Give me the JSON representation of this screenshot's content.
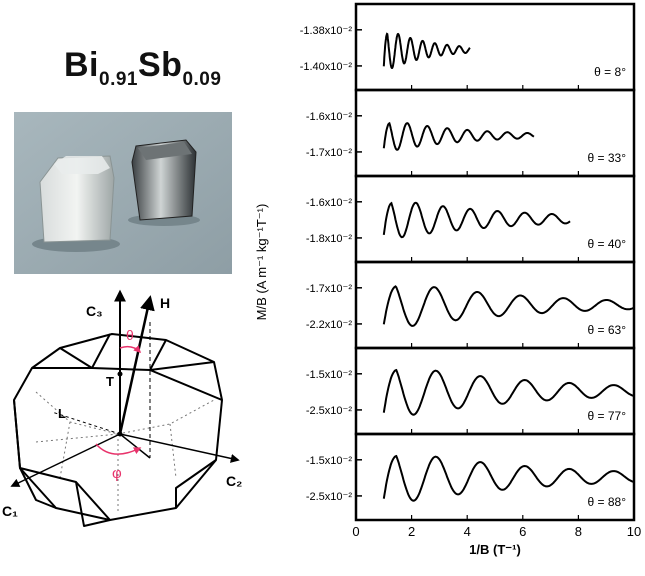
{
  "title": {
    "base1": "Bi",
    "sub1": "0.91",
    "base2": "Sb",
    "sub2": "0.09"
  },
  "brillouin_zone": {
    "labels": [
      "C₃",
      "H",
      "θ",
      "T",
      "L",
      "C₁",
      "φ",
      "C₂"
    ],
    "highlight_color": "#e8336b"
  },
  "chart_data": {
    "type": "line",
    "xlabel": "1/B (T⁻¹)",
    "ylabel": "M/B (A m⁻¹ kg⁻¹T⁻¹)",
    "xlim": [
      0,
      10
    ],
    "xticks": [
      0,
      2,
      4,
      6,
      8,
      10
    ],
    "xtick_labels": [
      "0",
      "2",
      "4",
      "6",
      "8",
      "10"
    ],
    "panels": [
      {
        "angle_label": "θ = 8°",
        "yticks": [
          "-1.38x10⁻²",
          "-1.40x10⁻²"
        ],
        "ylim": [
          -1.41,
          -1.37
        ],
        "series": {
          "x_start": 1.0,
          "x_end": 4.1,
          "center": -1.3915,
          "amplitude": 0.012,
          "period": 0.44,
          "decay": 0.55
        }
      },
      {
        "angle_label": "θ = 33°",
        "yticks": [
          "-1.6x10⁻²",
          "-1.7x10⁻²"
        ],
        "ylim": [
          -1.72,
          -1.58
        ],
        "series": {
          "x_start": 1.0,
          "x_end": 6.4,
          "center": -1.655,
          "amplitude": 0.032,
          "period": 0.72,
          "decay": 0.3
        }
      },
      {
        "angle_label": "θ = 40°",
        "yticks": [
          "-1.6x10⁻²",
          "-1.8x10⁻²"
        ],
        "ylim": [
          -1.83,
          -1.57
        ],
        "series": {
          "x_start": 1.0,
          "x_end": 7.7,
          "center": -1.7,
          "amplitude": 0.075,
          "period": 0.98,
          "decay": 0.2
        }
      },
      {
        "angle_label": "θ = 63°",
        "yticks": [
          "-1.7x10⁻²",
          "-2.2x10⁻²"
        ],
        "ylim": [
          -2.35,
          -1.55
        ],
        "series": {
          "x_start": 1.0,
          "x_end": 10.0,
          "center": -1.95,
          "amplitude": 0.28,
          "period": 1.55,
          "decay": 0.17
        }
      },
      {
        "angle_label": "θ = 77°",
        "yticks": [
          "-1.5x10⁻²",
          "-2.5x10⁻²"
        ],
        "ylim": [
          -2.7,
          -1.3
        ],
        "series": {
          "x_start": 1.0,
          "x_end": 10.0,
          "center": -2.0,
          "amplitude": 0.55,
          "period": 1.6,
          "decay": 0.16
        }
      },
      {
        "angle_label": "θ = 88°",
        "yticks": [
          "-1.5x10⁻²",
          "-2.5x10⁻²"
        ],
        "ylim": [
          -2.7,
          -1.3
        ],
        "series": {
          "x_start": 1.0,
          "x_end": 10.0,
          "center": -2.0,
          "amplitude": 0.55,
          "period": 1.6,
          "decay": 0.16
        }
      }
    ]
  }
}
